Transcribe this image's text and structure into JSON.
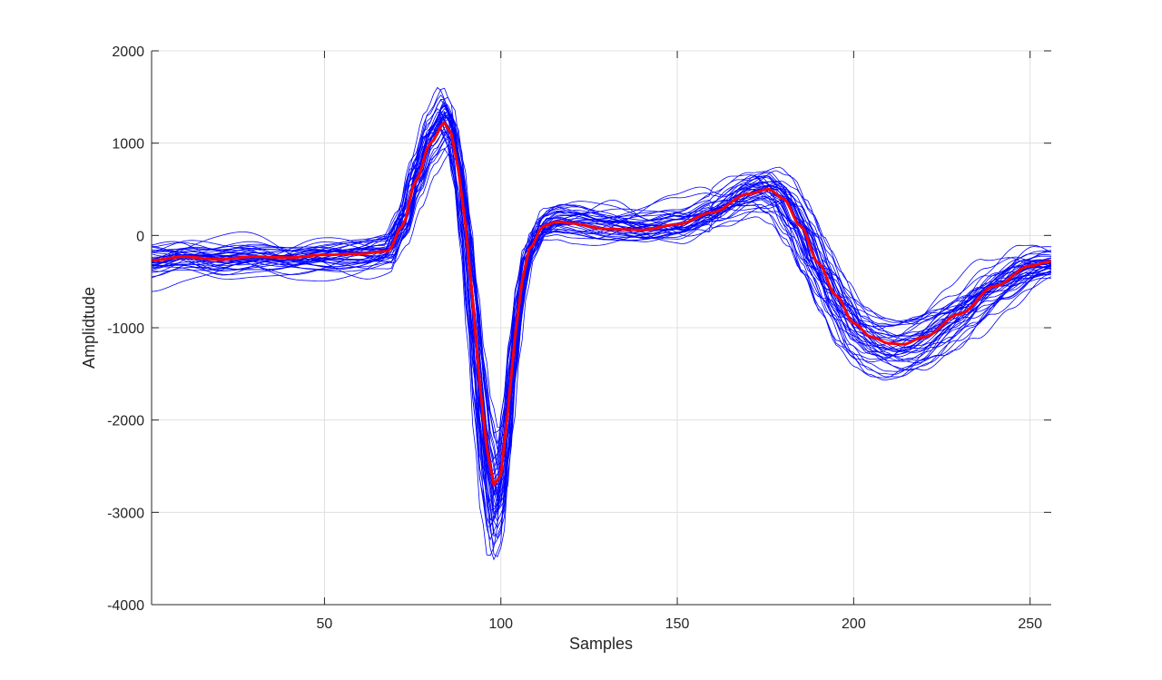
{
  "chart_data": {
    "type": "line",
    "xlabel": "Samples",
    "ylabel": "Amplidtude",
    "xlim": [
      1,
      256
    ],
    "ylim": [
      -4000,
      2000
    ],
    "xticks": [
      50,
      100,
      150,
      200,
      250
    ],
    "yticks": [
      -4000,
      -3000,
      -2000,
      -1000,
      0,
      1000,
      2000
    ],
    "grid": true,
    "colors": {
      "traces": "#0000ff",
      "mean": "#ff0000"
    },
    "trace_count": 40,
    "mean_waveform": {
      "x": [
        1,
        10,
        20,
        30,
        40,
        50,
        60,
        68,
        72,
        76,
        80,
        84,
        86,
        88,
        90,
        92,
        94,
        96,
        98,
        100,
        102,
        104,
        106,
        108,
        112,
        116,
        120,
        130,
        140,
        150,
        160,
        170,
        176,
        180,
        185,
        190,
        195,
        200,
        205,
        210,
        214,
        220,
        230,
        240,
        250,
        256
      ],
      "y": [
        -270,
        -230,
        -260,
        -230,
        -240,
        -210,
        -200,
        -170,
        100,
        600,
        1000,
        1220,
        1100,
        700,
        100,
        -700,
        -1600,
        -2300,
        -2700,
        -2600,
        -1900,
        -1100,
        -500,
        -150,
        100,
        150,
        130,
        70,
        60,
        120,
        250,
        450,
        500,
        400,
        100,
        -300,
        -650,
        -950,
        -1100,
        -1170,
        -1180,
        -1100,
        -850,
        -550,
        -330,
        -280
      ]
    }
  }
}
